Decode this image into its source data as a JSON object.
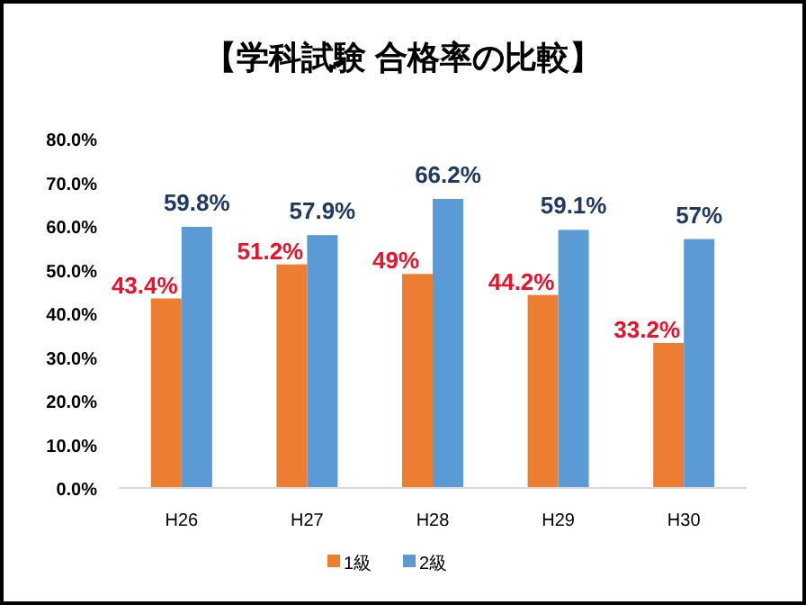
{
  "chart_data": {
    "type": "bar",
    "title": "【学科試験 合格率の比較】",
    "categories": [
      "H26",
      "H27",
      "H28",
      "H29",
      "H30"
    ],
    "series": [
      {
        "name": "1級",
        "color": "#ed7d31",
        "values": [
          43.4,
          51.2,
          49,
          44.2,
          33.2
        ],
        "value_labels": [
          "43.4%",
          "51.2%",
          "49%",
          "44.2%",
          "33.2%"
        ]
      },
      {
        "name": "2級",
        "color": "#5b9bd5",
        "values": [
          59.8,
          57.9,
          66.2,
          59.1,
          57
        ],
        "value_labels": [
          "59.8%",
          "57.9%",
          "66.2%",
          "59.1%",
          "57%"
        ]
      }
    ],
    "ylim": [
      0,
      80
    ],
    "yticks": [
      {
        "value": 0,
        "label": "0.0%"
      },
      {
        "value": 10,
        "label": "10.0%"
      },
      {
        "value": 20,
        "label": "20.0%"
      },
      {
        "value": 30,
        "label": "30.0%"
      },
      {
        "value": 40,
        "label": "40.0%"
      },
      {
        "value": 50,
        "label": "50.0%"
      },
      {
        "value": 60,
        "label": "60.0%"
      },
      {
        "value": 70,
        "label": "70.0%"
      },
      {
        "value": 80,
        "label": "80.0%"
      }
    ],
    "legend": "bottom"
  }
}
